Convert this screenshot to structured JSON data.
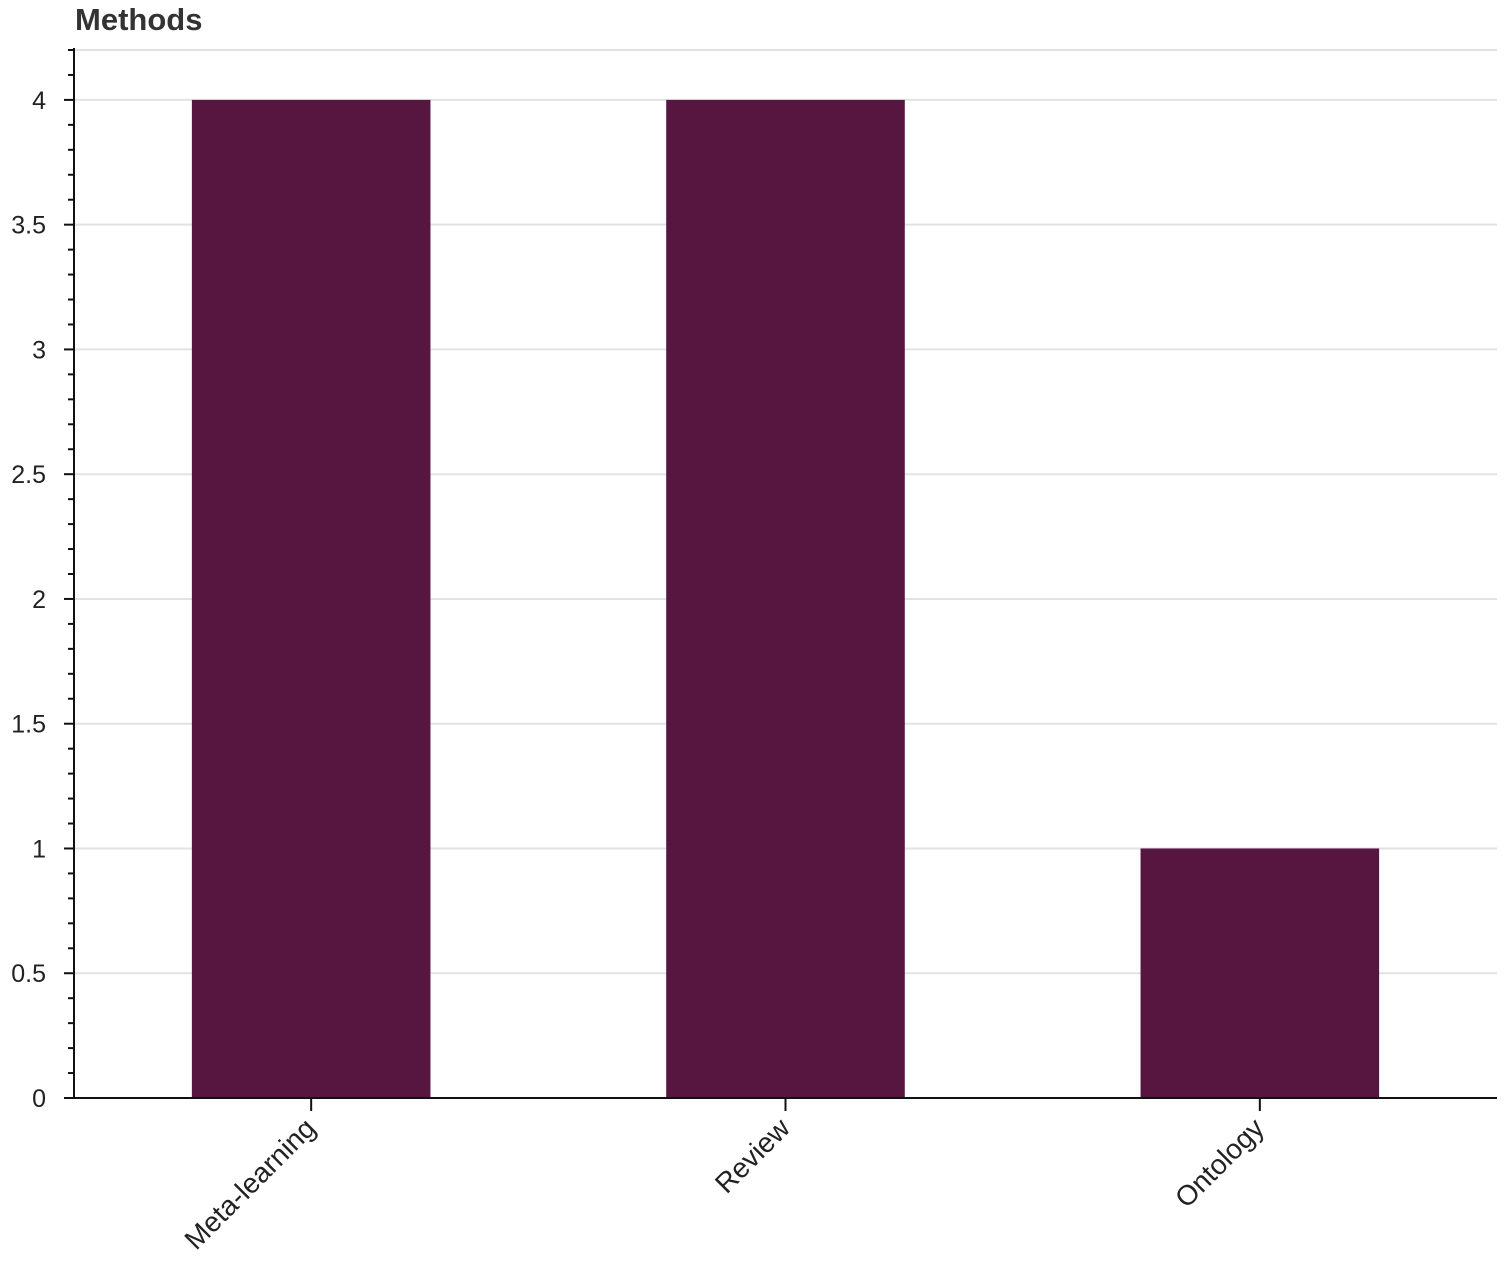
{
  "chart_data": {
    "type": "bar",
    "title": "Methods",
    "xlabel": "",
    "ylabel": "",
    "categories": [
      "Meta-learning",
      "Review",
      "Ontology"
    ],
    "values": [
      4,
      4,
      1
    ],
    "ylim": [
      0,
      4.2
    ],
    "yticks": [
      0,
      0.5,
      1,
      1.5,
      2,
      2.5,
      3,
      3.5,
      4
    ],
    "ytick_labels": [
      "0",
      "0.5",
      "1",
      "1.5",
      "2",
      "2.5",
      "3",
      "3.5",
      "4"
    ],
    "grid": true,
    "legend": "none",
    "colors": {
      "bar": "#561640",
      "grid": "#e2e2e2",
      "axis": "#111111"
    }
  }
}
